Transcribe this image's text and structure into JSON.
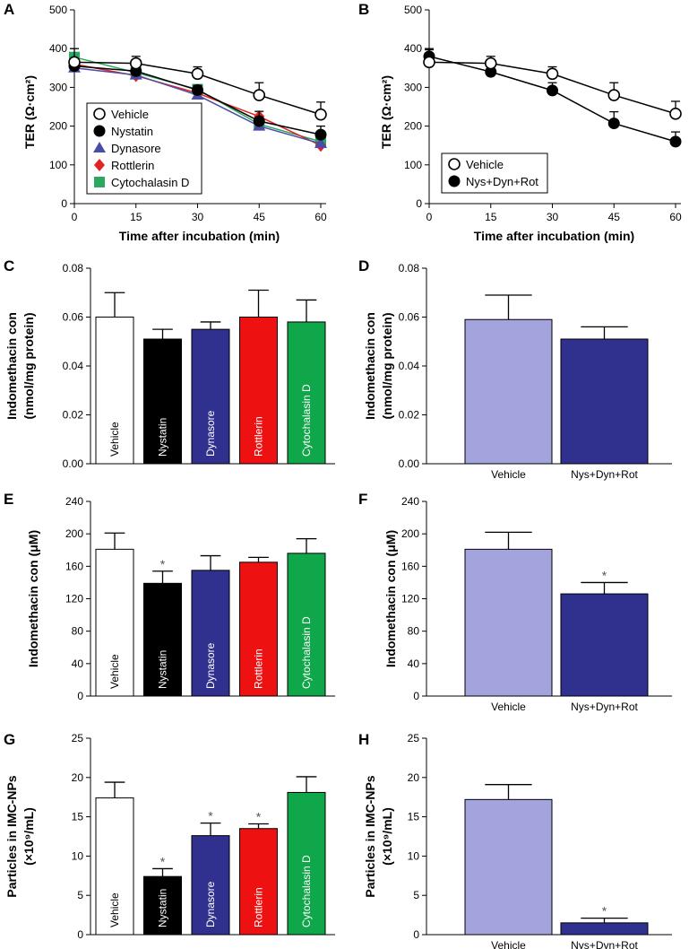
{
  "colors": {
    "vehicle": "#ffffff",
    "nystatin": "#000000",
    "dynasore": "#30308f",
    "rottlerin": "#ee1111",
    "cytochalasin": "#10a64a",
    "light_vehicle": "#a3a3dd",
    "combo": "#30308f",
    "line_dynasore": "#4b4ba8",
    "line_rottlerin": "#e32222",
    "line_cytochalasin": "#2aa860"
  },
  "chart_data": [
    {
      "panel": "A",
      "type": "line",
      "xlabel": "Time after incubation (min)",
      "ylabel": "TER (Ω·cm²)",
      "x": [
        0,
        15,
        30,
        45,
        60
      ],
      "xticks": [
        "0",
        "15",
        "30",
        "45",
        "60"
      ],
      "yticks": [
        "0",
        "100",
        "200",
        "300",
        "400",
        "500"
      ],
      "ylim": [
        0,
        500
      ],
      "legend_position": "bottom-left",
      "series": [
        {
          "name": "Vehicle",
          "marker": "open-circle",
          "values": [
            365,
            362,
            335,
            280,
            230
          ],
          "errors": [
            35,
            18,
            18,
            32,
            32
          ]
        },
        {
          "name": "Nystatin",
          "marker": "filled-circle",
          "values": [
            355,
            342,
            293,
            213,
            178
          ],
          "errors": [
            0,
            0,
            12,
            25,
            22
          ]
        },
        {
          "name": "Dynasore",
          "marker": "triangle",
          "values": [
            350,
            332,
            280,
            200,
            155
          ],
          "errors": [
            0,
            0,
            0,
            0,
            0
          ]
        },
        {
          "name": "Rottlerin",
          "marker": "diamond",
          "values": [
            360,
            330,
            285,
            225,
            150
          ],
          "errors": [
            0,
            0,
            0,
            0,
            0
          ]
        },
        {
          "name": "Cytochalasin D",
          "marker": "square",
          "values": [
            378,
            338,
            295,
            205,
            160
          ],
          "errors": [
            0,
            0,
            0,
            0,
            0
          ]
        }
      ]
    },
    {
      "panel": "B",
      "type": "line",
      "xlabel": "Time after incubation (min)",
      "ylabel": "TER (Ω·cm²)",
      "x": [
        0,
        15,
        30,
        45,
        60
      ],
      "xticks": [
        "0",
        "15",
        "30",
        "45",
        "60"
      ],
      "yticks": [
        "0",
        "100",
        "200",
        "300",
        "400",
        "500"
      ],
      "ylim": [
        0,
        500
      ],
      "legend_position": "bottom-left",
      "series": [
        {
          "name": "Vehicle",
          "marker": "open-circle",
          "values": [
            365,
            362,
            335,
            280,
            232
          ],
          "errors": [
            32,
            18,
            18,
            32,
            32
          ]
        },
        {
          "name": "Nys+Dyn+Rot",
          "marker": "filled-circle",
          "values": [
            380,
            340,
            292,
            207,
            160
          ],
          "errors": [
            20,
            0,
            20,
            30,
            25
          ]
        }
      ]
    },
    {
      "panel": "C",
      "type": "bar",
      "ylabel": [
        "Indomethacin con",
        "(nmol/mg protein)"
      ],
      "yticks": [
        "0.00",
        "0.02",
        "0.04",
        "0.06",
        "0.08"
      ],
      "ylim": [
        0,
        0.08
      ],
      "categories": [
        "Vehicle",
        "Nystatin",
        "Dynasore",
        "Rottlerin",
        "Cytochalasin D"
      ],
      "values": [
        0.06,
        0.051,
        0.055,
        0.06,
        0.058
      ],
      "errors": [
        0.01,
        0.004,
        0.003,
        0.011,
        0.009
      ],
      "significant": [
        false,
        false,
        false,
        false,
        false
      ],
      "label_inside": true
    },
    {
      "panel": "D",
      "type": "bar",
      "ylabel": [
        "Indomethacin con",
        "(nmol/mg protein)"
      ],
      "yticks": [
        "0.00",
        "0.02",
        "0.04",
        "0.06",
        "0.08"
      ],
      "ylim": [
        0,
        0.08
      ],
      "categories": [
        "Vehicle",
        "Nys+Dyn+Rot"
      ],
      "values": [
        0.059,
        0.051
      ],
      "errors": [
        0.01,
        0.005
      ],
      "significant": [
        false,
        false
      ],
      "label_inside": false
    },
    {
      "panel": "E",
      "type": "bar",
      "ylabel": [
        "Indomethacin con (μM)"
      ],
      "yticks": [
        "0",
        "40",
        "80",
        "120",
        "160",
        "200",
        "240"
      ],
      "ylim": [
        0,
        240
      ],
      "categories": [
        "Vehicle",
        "Nystatin",
        "Dynasore",
        "Rottlerin",
        "Cytochalasin D"
      ],
      "values": [
        181,
        139,
        155,
        165,
        176
      ],
      "errors": [
        20,
        15,
        18,
        6,
        18
      ],
      "significant": [
        false,
        true,
        false,
        false,
        false
      ],
      "label_inside": true
    },
    {
      "panel": "F",
      "type": "bar",
      "ylabel": [
        "Indomethacin con (μM)"
      ],
      "yticks": [
        "0",
        "40",
        "80",
        "120",
        "160",
        "200",
        "240"
      ],
      "ylim": [
        0,
        240
      ],
      "categories": [
        "Vehicle",
        "Nys+Dyn+Rot"
      ],
      "values": [
        181,
        126
      ],
      "errors": [
        21,
        14
      ],
      "significant": [
        false,
        true
      ],
      "label_inside": false
    },
    {
      "panel": "G",
      "type": "bar",
      "ylabel": [
        "Particles in IMC-NPs",
        "(×10⁹/mL)"
      ],
      "yticks": [
        "0",
        "5",
        "10",
        "15",
        "20",
        "25"
      ],
      "ylim": [
        0,
        25
      ],
      "categories": [
        "Vehicle",
        "Nystatin",
        "Dynasore",
        "Rottlerin",
        "Cytochalasin D"
      ],
      "values": [
        17.4,
        7.4,
        12.6,
        13.5,
        18.1
      ],
      "errors": [
        2.0,
        1.0,
        1.6,
        0.6,
        2.0
      ],
      "significant": [
        false,
        true,
        true,
        true,
        false
      ],
      "label_inside": true
    },
    {
      "panel": "H",
      "type": "bar",
      "ylabel": [
        "Particles in IMC-NPs",
        "(×10⁹/mL)"
      ],
      "yticks": [
        "0",
        "5",
        "10",
        "15",
        "20",
        "25"
      ],
      "ylim": [
        0,
        25
      ],
      "categories": [
        "Vehicle",
        "Nys+Dyn+Rot"
      ],
      "values": [
        17.2,
        1.5
      ],
      "errors": [
        1.9,
        0.6
      ],
      "significant": [
        false,
        true
      ],
      "label_inside": false
    }
  ]
}
